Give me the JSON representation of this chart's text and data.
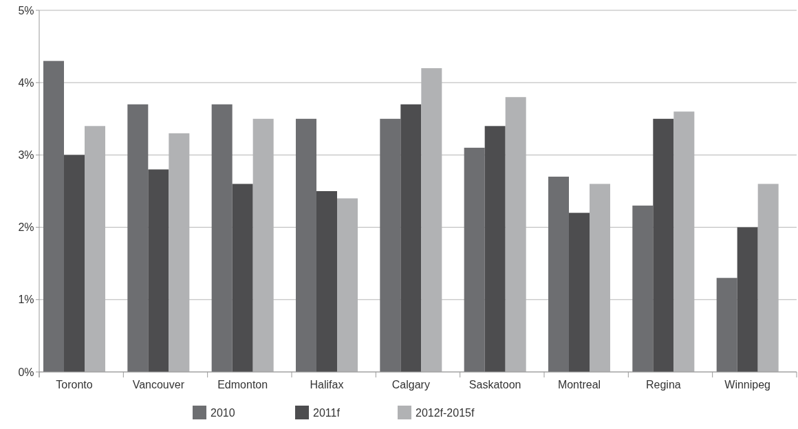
{
  "chart_data": {
    "type": "bar",
    "categories": [
      "Toronto",
      "Vancouver",
      "Edmonton",
      "Halifax",
      "Calgary",
      "Saskatoon",
      "Montreal",
      "Regina",
      "Winnipeg"
    ],
    "series": [
      {
        "name": "2010",
        "color": "#6d6e71",
        "values": [
          4.3,
          3.7,
          3.7,
          3.5,
          3.5,
          3.1,
          2.7,
          2.3,
          1.3
        ]
      },
      {
        "name": "2011f",
        "color": "#4d4d4f",
        "values": [
          3.0,
          2.8,
          2.6,
          2.5,
          3.7,
          3.4,
          2.2,
          3.5,
          2.0
        ]
      },
      {
        "name": "2012f-2015f",
        "color": "#b1b2b4",
        "values": [
          3.4,
          3.3,
          3.5,
          2.4,
          4.2,
          3.8,
          2.6,
          3.6,
          2.6
        ]
      }
    ],
    "ylim": [
      0,
      5
    ],
    "yticks": [
      {
        "value": 0,
        "label": "0%"
      },
      {
        "value": 1,
        "label": "1%"
      },
      {
        "value": 2,
        "label": "2%"
      },
      {
        "value": 3,
        "label": "3%"
      },
      {
        "value": 4,
        "label": "4%"
      },
      {
        "value": 5,
        "label": "5%"
      }
    ],
    "grid": "y",
    "legend": "bottom"
  }
}
